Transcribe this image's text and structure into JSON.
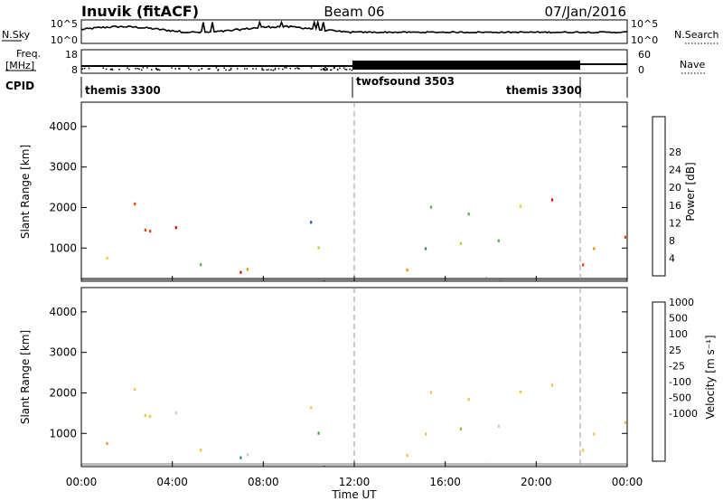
{
  "header": {
    "radar": "Inuvik (fitACF)",
    "beam": "Beam 06",
    "date": "07/Jan/2016"
  },
  "noise_panel": {
    "left_label": "N.Sky",
    "left_ticks": [
      "10^5",
      "10^0"
    ],
    "right_ticks": [
      "10^5",
      "10^0"
    ],
    "right_label": "N.Search"
  },
  "freq_panel": {
    "left_label_1": "Freq.",
    "left_label_2": "[MHz]",
    "left_ticks": [
      "18",
      "8"
    ],
    "right_ticks": [
      "60",
      "0"
    ],
    "right_label": "Nave"
  },
  "cpid": {
    "label": "CPID",
    "segments": [
      {
        "name": "themis 3300",
        "start_hour": 0,
        "end_hour": 12
      },
      {
        "name": "twofsound 3503",
        "start_hour": 12,
        "end_hour": 21.9
      },
      {
        "name": "themis 3300",
        "start_hour": 21.9,
        "end_hour": 24
      }
    ]
  },
  "x_axis": {
    "label": "Time UT",
    "ticks": [
      "00:00",
      "04:00",
      "08:00",
      "12:00",
      "16:00",
      "20:00",
      "00:00"
    ]
  },
  "power_panel": {
    "ylabel": "Slant Range [km]",
    "yticks": [
      "1000",
      "2000",
      "3000",
      "4000"
    ],
    "colorbar_title": "Power [dB]",
    "colorbar_ticks": [
      "4",
      "8",
      "12",
      "16",
      "20",
      "24",
      "28"
    ],
    "colors": [
      "#0000ee",
      "#2255bb",
      "#2e8b57",
      "#4ab04a",
      "#a8d830",
      "#f0d000",
      "#f08a00",
      "#f04000",
      "#e00000"
    ]
  },
  "velocity_panel": {
    "ylabel": "Slant Range [km]",
    "yticks": [
      "1000",
      "2000",
      "3000",
      "4000"
    ],
    "colorbar_title": "Velocity [m s⁻¹]",
    "colorbar_ticks": [
      "1000",
      "500",
      "100",
      "25",
      "-25",
      "-100",
      "-500",
      "-1000"
    ],
    "colors": [
      "#1a3fbf",
      "#2f6fb0",
      "#2f8a70",
      "#3aa83a",
      "#7cc840",
      "#c8c8c8",
      "#f0c040",
      "#f09030",
      "#f06020",
      "#e02000"
    ]
  },
  "chart_data": {
    "type": "heatmap",
    "x_range_hours": [
      0,
      24
    ],
    "y_range_km": [
      180,
      4600
    ],
    "panels": [
      "Power [dB]",
      "Velocity [m s⁻¹]"
    ],
    "scatter_regions": [
      {
        "t0": 0.0,
        "t1": 4.0,
        "r0": 500,
        "r1": 2400,
        "power": 24,
        "velocity": -300
      },
      {
        "t0": 1.8,
        "t1": 4.2,
        "r0": 1400,
        "r1": 2100,
        "power": 26,
        "velocity": -200
      },
      {
        "t0": 4.5,
        "t1": 6.0,
        "r0": 300,
        "r1": 900,
        "power": 18,
        "velocity": -100
      },
      {
        "t0": 5.0,
        "t1": 12.0,
        "r0": 250,
        "r1": 900,
        "power": 27,
        "velocity": 40
      },
      {
        "t0": 7.5,
        "t1": 11.5,
        "r0": 800,
        "r1": 1200,
        "power": 14,
        "velocity": 5
      },
      {
        "t0": 9.0,
        "t1": 11.5,
        "r0": 1500,
        "r1": 2400,
        "power": 12,
        "velocity": -50
      },
      {
        "t0": 12.5,
        "t1": 20.5,
        "r0": 200,
        "r1": 800,
        "power": 26,
        "velocity": -150
      },
      {
        "t0": 12.5,
        "t1": 20.5,
        "r0": 800,
        "r1": 1400,
        "power": 14,
        "velocity": -60
      },
      {
        "t0": 14.0,
        "t1": 21.0,
        "r0": 1600,
        "r1": 2400,
        "power": 15,
        "velocity": -200
      },
      {
        "t0": 20.5,
        "t1": 24.0,
        "r0": 500,
        "r1": 2400,
        "power": 24,
        "velocity": -250
      }
    ]
  }
}
